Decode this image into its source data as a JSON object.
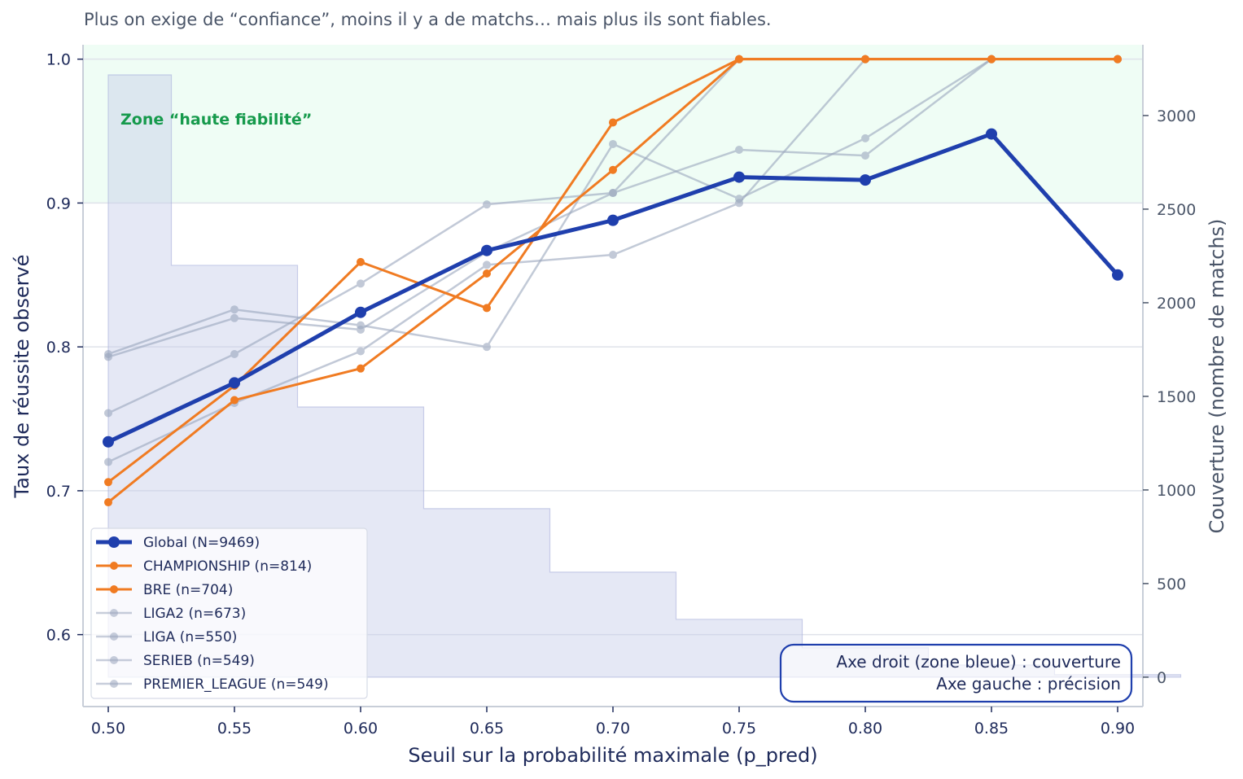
{
  "chart_data": {
    "type": "line",
    "subtitle": "Plus on exige de “confiance”, moins il y a de matchs… mais plus ils sont fiables.",
    "xlabel": "Seuil sur la probabilité maximale (p_pred)",
    "ylabel": "Taux de réussite observé",
    "ylabel_right": "Couverture (nombre de matchs)",
    "x": [
      0.5,
      0.55,
      0.6,
      0.65,
      0.7,
      0.75,
      0.8,
      0.85,
      0.9
    ],
    "x_tick_labels": [
      "0.50",
      "0.55",
      "0.60",
      "0.65",
      "0.70",
      "0.75",
      "0.80",
      "0.85",
      "0.90"
    ],
    "xlim": [
      0.49,
      0.91
    ],
    "ylim": [
      0.55,
      1.01
    ],
    "y_ticks": [
      0.6,
      0.7,
      0.8,
      0.9,
      1.0
    ],
    "y_tick_labels": [
      "0.6",
      "0.7",
      "0.8",
      "0.9",
      "1.0"
    ],
    "ylim_right": [
      -157,
      3378
    ],
    "y_ticks_right": [
      0,
      500,
      1000,
      1500,
      2000,
      2500,
      3000
    ],
    "grid": true,
    "legend_position": "lower left",
    "high_reliability_zone": {
      "label": "Zone “haute fiabilité”",
      "y_from": 0.9,
      "y_to": 1.01,
      "color": "#effdf5",
      "label_color": "#169a4c"
    },
    "coverage": {
      "name": "Couverture",
      "bin_edges": [
        0.5,
        0.525,
        0.575,
        0.625,
        0.675,
        0.725,
        0.775,
        0.825,
        0.875,
        0.925
      ],
      "values": [
        3217,
        2200,
        1443,
        900,
        561,
        309,
        157,
        65,
        13
      ],
      "color": "#c5cbe8"
    },
    "series": [
      {
        "name": "Global (N=9469)",
        "color": "#1f3fad",
        "width": 5,
        "marker": 7,
        "opacity": 1.0,
        "values": [
          0.734,
          0.775,
          0.824,
          0.867,
          0.888,
          0.918,
          0.916,
          0.948,
          0.85
        ]
      },
      {
        "name": "CHAMPIONSHIP (n=814)",
        "color": "#f07b22",
        "width": 3,
        "marker": 5,
        "opacity": 1.0,
        "values": [
          0.706,
          0.773,
          0.859,
          0.827,
          0.956,
          1.0,
          1.0,
          1.0,
          1.0
        ]
      },
      {
        "name": "BRE (n=704)",
        "color": "#f07b22",
        "width": 3,
        "marker": 5,
        "opacity": 1.0,
        "values": [
          0.692,
          0.763,
          0.785,
          0.851,
          0.923,
          1.0,
          1.0,
          1.0,
          1.0
        ]
      },
      {
        "name": "LIGA2 (n=673)",
        "color": "#9aa6bd",
        "width": 2.5,
        "marker": 5,
        "opacity": 0.6,
        "values": [
          0.795,
          0.826,
          0.815,
          0.8,
          0.941,
          0.903,
          0.945,
          1.0,
          1.0
        ]
      },
      {
        "name": "LIGA (n=550)",
        "color": "#9aa6bd",
        "width": 2.5,
        "marker": 5,
        "opacity": 0.6,
        "values": [
          0.793,
          0.82,
          0.812,
          0.866,
          0.907,
          1.0,
          1.0,
          1.0,
          1.0
        ]
      },
      {
        "name": "SERIEB (n=549)",
        "color": "#9aa6bd",
        "width": 2.5,
        "marker": 5,
        "opacity": 0.6,
        "values": [
          0.754,
          0.795,
          0.844,
          0.899,
          0.907,
          0.937,
          0.933,
          1.0,
          1.0
        ]
      },
      {
        "name": "PREMIER_LEAGUE (n=549)",
        "color": "#9aa6bd",
        "width": 2.5,
        "marker": 5,
        "opacity": 0.6,
        "values": [
          0.72,
          0.761,
          0.797,
          0.857,
          0.864,
          0.9,
          1.0,
          1.0,
          1.0
        ]
      }
    ],
    "annotation_box": {
      "line1": "Axe droit (zone bleue) : couverture",
      "line2": "Axe gauche : précision",
      "border_color": "#1f3fad"
    }
  }
}
